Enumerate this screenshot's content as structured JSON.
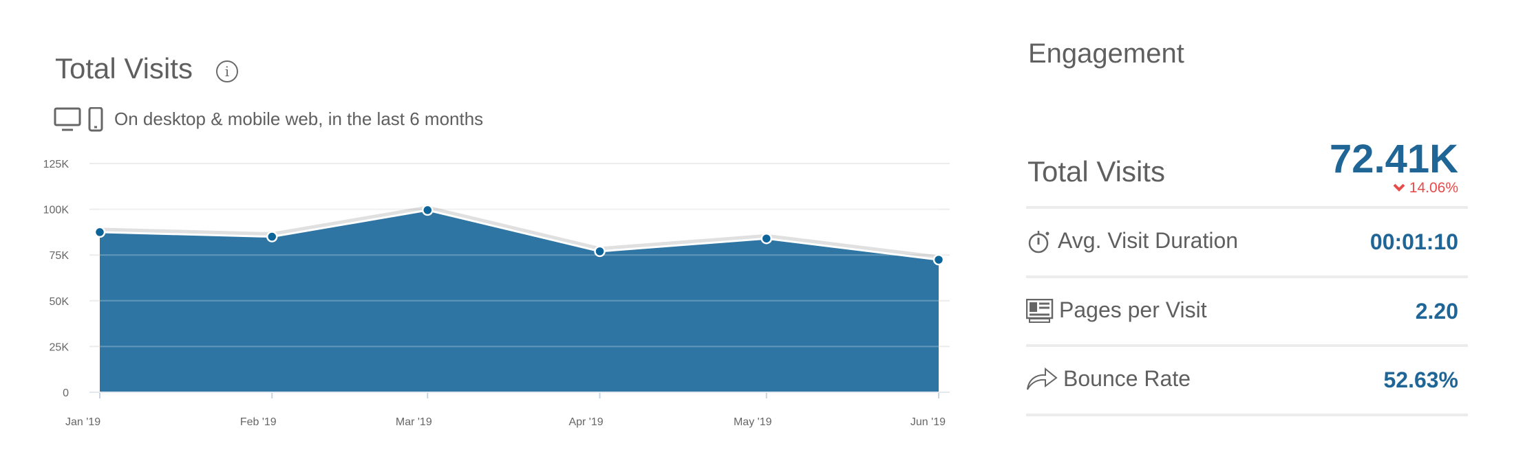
{
  "header": {
    "title": "Total Visits",
    "info_icon": "info-icon",
    "devices": [
      "desktop-icon",
      "mobile-icon"
    ],
    "subtitle": "On desktop & mobile web, in the last 6 months"
  },
  "engagement": {
    "title": "Engagement",
    "total_visits": {
      "label": "Total Visits",
      "value": "72.41K",
      "change": "14.06%",
      "change_direction": "down",
      "change_color": "#e84a4a"
    },
    "metrics": [
      {
        "label": "Avg. Visit Duration",
        "value": "00:01:10",
        "icon": "stopwatch-icon"
      },
      {
        "label": "Pages per Visit",
        "value": "2.20",
        "icon": "pages-icon"
      },
      {
        "label": "Bounce Rate",
        "value": "52.63%",
        "icon": "bounce-arrow-icon"
      }
    ],
    "value_color": "#1f6596"
  },
  "chart_data": {
    "type": "area",
    "x": [
      "2019-01-01",
      "2019-02-01",
      "2019-03-01",
      "2019-04-01",
      "2019-05-01",
      "2019-06-01"
    ],
    "categories": [
      "Jan '19",
      "Feb '19",
      "Mar '19",
      "Apr '19",
      "May '19",
      "Jun '19"
    ],
    "values": [
      87500,
      85000,
      99500,
      77000,
      84000,
      72410
    ],
    "ylim": [
      0,
      125000
    ],
    "yticks": [
      0,
      25000,
      50000,
      75000,
      100000,
      125000
    ],
    "ytick_labels": [
      "0",
      "25K",
      "50K",
      "75K",
      "100K",
      "125K"
    ],
    "grid": true,
    "color": "#2e75a3",
    "marker_color": "#0d6499"
  }
}
